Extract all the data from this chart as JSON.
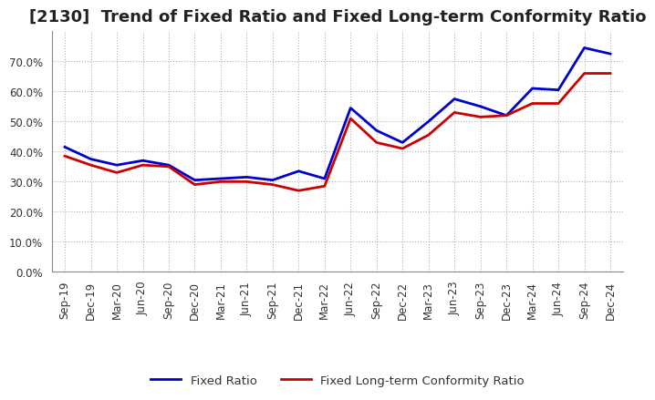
{
  "title": "[2130]  Trend of Fixed Ratio and Fixed Long-term Conformity Ratio",
  "x_labels": [
    "Sep-19",
    "Dec-19",
    "Mar-20",
    "Jun-20",
    "Sep-20",
    "Dec-20",
    "Mar-21",
    "Jun-21",
    "Sep-21",
    "Dec-21",
    "Mar-22",
    "Jun-22",
    "Sep-22",
    "Dec-22",
    "Mar-23",
    "Jun-23",
    "Sep-23",
    "Dec-23",
    "Mar-24",
    "Jun-24",
    "Sep-24",
    "Dec-24"
  ],
  "fixed_ratio": [
    41.5,
    37.5,
    35.5,
    37.0,
    35.5,
    30.5,
    31.0,
    31.5,
    30.5,
    33.5,
    31.0,
    54.5,
    47.0,
    43.0,
    50.0,
    57.5,
    55.0,
    52.0,
    61.0,
    60.5,
    74.5,
    72.5
  ],
  "fixed_lt_ratio": [
    38.5,
    35.5,
    33.0,
    35.5,
    35.0,
    29.0,
    30.0,
    30.0,
    29.0,
    27.0,
    28.5,
    51.0,
    43.0,
    41.0,
    45.5,
    53.0,
    51.5,
    52.0,
    56.0,
    56.0,
    66.0,
    66.0
  ],
  "fixed_ratio_color": "#0000cc",
  "fixed_lt_ratio_color": "#cc0000",
  "background_color": "#ffffff",
  "plot_bg_color": "#ffffff",
  "grid_color": "#aaaaaa",
  "ylim": [
    0,
    80
  ],
  "yticks": [
    0,
    10,
    20,
    30,
    40,
    50,
    60,
    70
  ],
  "legend_fixed": "Fixed Ratio",
  "legend_fixed_lt": "Fixed Long-term Conformity Ratio",
  "line_width": 2.0,
  "title_fontsize": 13,
  "tick_fontsize": 8.5
}
